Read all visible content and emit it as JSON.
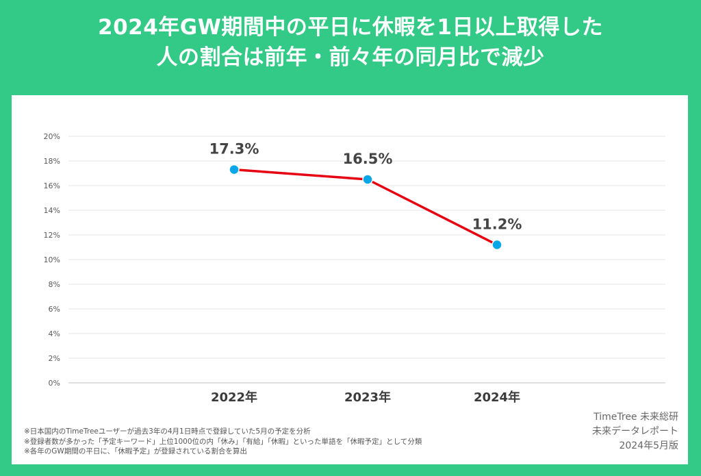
{
  "title": {
    "line1": "2024年GW期間中の平日に休暇を1日以上取得した",
    "line2": "人の割合は前年・前々年の同月比で減少"
  },
  "colors": {
    "background": "#33c986",
    "line": "#e60012",
    "marker": "#0aa7e8",
    "label": "#444444",
    "grid": "#e6e6e6"
  },
  "chart_data": {
    "type": "line",
    "categories": [
      "2022年",
      "2023年",
      "2024年"
    ],
    "series": [
      {
        "values": [
          17.3,
          16.5,
          11.2
        ]
      }
    ],
    "data_labels": [
      "17.3%",
      "16.5%",
      "11.2%"
    ],
    "yticks": [
      "0%",
      "2%",
      "4%",
      "6%",
      "8%",
      "10%",
      "12%",
      "14%",
      "16%",
      "18%",
      "20%"
    ],
    "ylim": [
      0,
      20
    ],
    "grid": true,
    "legend": "none"
  },
  "notes": [
    "※日本国内のTimeTreeユーザーが過去3年の4月1日時点で登録していた5月の予定を分析",
    "※登録者数が多かった「予定キーワード」上位1000位の内「休み」「有給」「休暇」といった単語を「休暇予定」として分類",
    "※各年のGW期間の平日に、「休暇予定」が登録されている割合を算出"
  ],
  "credits": {
    "line1": "TimeTree 未来総研",
    "line2": "未来データレポート",
    "line3": "2024年5月版"
  }
}
